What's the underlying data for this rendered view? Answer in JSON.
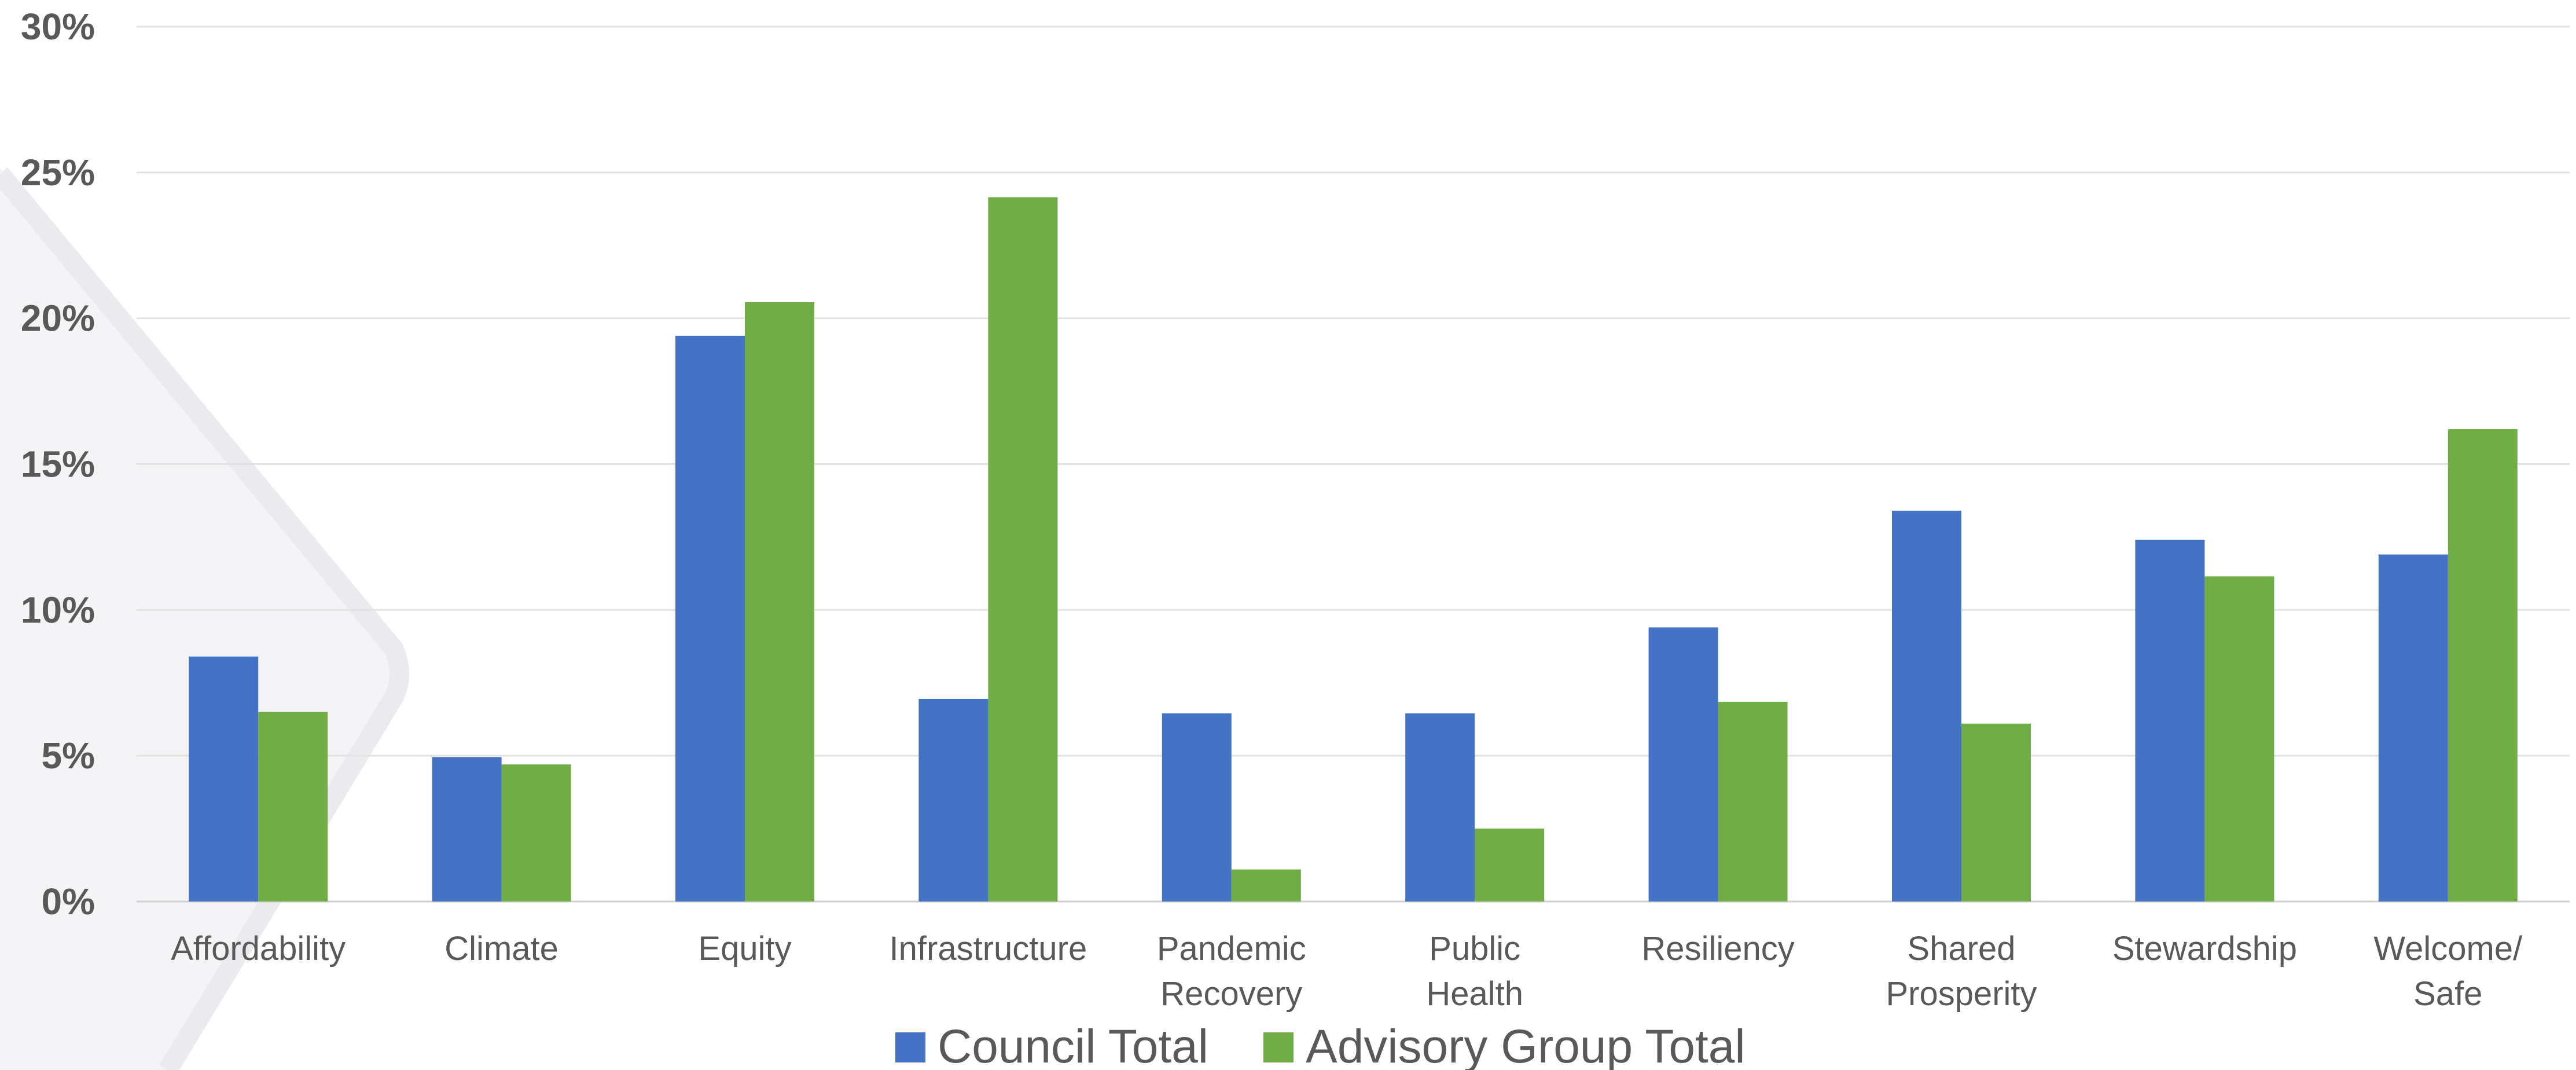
{
  "chart_data": {
    "type": "bar",
    "categories": [
      [
        "Affordability"
      ],
      [
        "Climate"
      ],
      [
        "Equity"
      ],
      [
        "Infrastructure"
      ],
      [
        "Pandemic",
        "Recovery"
      ],
      [
        "Public",
        "Health"
      ],
      [
        "Resiliency"
      ],
      [
        "Shared",
        "Prosperity"
      ],
      [
        "Stewardship"
      ],
      [
        "Welcome/",
        "Safe"
      ]
    ],
    "series": [
      {
        "name": "Council Total",
        "color": "#4472C4",
        "values": [
          8.4,
          4.95,
          19.4,
          6.95,
          6.45,
          6.45,
          9.4,
          13.4,
          12.4,
          11.9
        ]
      },
      {
        "name": "Advisory Group Total",
        "color": "#70AD47",
        "values": [
          6.5,
          4.7,
          20.55,
          24.15,
          1.1,
          2.5,
          6.85,
          6.1,
          11.15,
          16.2
        ]
      }
    ],
    "yticks": [
      "0%",
      "5%",
      "10%",
      "15%",
      "20%",
      "25%",
      "30%"
    ],
    "ylim": [
      0,
      30
    ],
    "grid": true,
    "legend_position": "bottom"
  }
}
